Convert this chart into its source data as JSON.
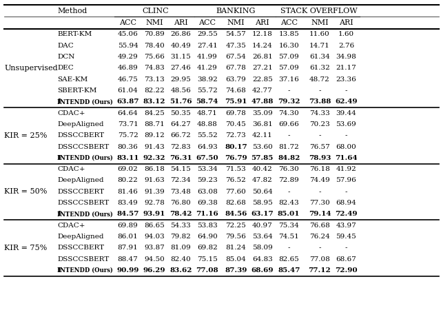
{
  "title": "",
  "header_groups": [
    {
      "label": "CLINC",
      "cols": [
        "ACC",
        "NMI",
        "ARI"
      ],
      "start": 2,
      "end": 4
    },
    {
      "label": "BANKING",
      "cols": [
        "ACC",
        "NMI",
        "ARI"
      ],
      "start": 5,
      "end": 7
    },
    {
      "label": "STACK OVERFLOW",
      "cols": [
        "ACC",
        "NMI",
        "ARI"
      ],
      "start": 8,
      "end": 10
    }
  ],
  "col_headers": [
    "",
    "Method",
    "ACC",
    "NMI",
    "ARI",
    "ACC",
    "NMI",
    "ARI",
    "ACC",
    "NMI",
    "ARI"
  ],
  "sections": [
    {
      "label": "Unsupervised",
      "rows": [
        [
          "BERT-KM",
          "45.06",
          "70.89",
          "26.86",
          "29.55",
          "54.57",
          "12.18",
          "13.85",
          "11.60",
          "1.60"
        ],
        [
          "DAC",
          "55.94",
          "78.40",
          "40.49",
          "27.41",
          "47.35",
          "14.24",
          "16.30",
          "14.71",
          "2.76"
        ],
        [
          "DCN",
          "49.29",
          "75.66",
          "31.15",
          "41.99",
          "67.54",
          "26.81",
          "57.09",
          "61.34",
          "34.98"
        ],
        [
          "DEC",
          "46.89",
          "74.83",
          "27.46",
          "41.29",
          "67.78",
          "27.21",
          "57.09",
          "61.32",
          "21.17"
        ],
        [
          "SAE-KM",
          "46.75",
          "73.13",
          "29.95",
          "38.92",
          "63.79",
          "22.85",
          "37.16",
          "48.72",
          "23.36"
        ],
        [
          "SBERT-KM",
          "61.04",
          "82.22",
          "48.56",
          "55.72",
          "74.68",
          "42.77",
          "-",
          "-",
          "-"
        ],
        [
          "INTENDD (Ours)",
          "63.87",
          "83.12",
          "51.76",
          "58.74",
          "75.91",
          "47.88",
          "79.32",
          "73.88",
          "62.49"
        ]
      ],
      "bold_row": 6
    },
    {
      "label": "KIR = 25%",
      "rows": [
        [
          "CDAC+",
          "64.64",
          "84.25",
          "50.35",
          "48.71",
          "69.78",
          "35.09",
          "74.30",
          "74.33",
          "39.44"
        ],
        [
          "DeepAligned",
          "73.71",
          "88.71",
          "64.27",
          "48.88",
          "70.45",
          "36.81",
          "69.66",
          "70.23",
          "53.69"
        ],
        [
          "DSSCCBERT",
          "75.72",
          "89.12",
          "66.72",
          "55.52",
          "72.73",
          "42.11",
          "-",
          "-",
          "-"
        ],
        [
          "DSSCCSBERT",
          "80.36",
          "91.43",
          "72.83",
          "64.93",
          "80.17",
          "53.60",
          "81.72",
          "76.57",
          "68.00"
        ],
        [
          "INTENDD (Ours)",
          "83.11",
          "92.32",
          "76.31",
          "67.50",
          "76.79",
          "57.85",
          "84.82",
          "78.93",
          "71.64"
        ]
      ],
      "bold_row": 4
    },
    {
      "label": "KIR = 50%",
      "rows": [
        [
          "CDAC+",
          "69.02",
          "86.18",
          "54.15",
          "53.34",
          "71.53",
          "40.42",
          "76.30",
          "76.18",
          "41.92"
        ],
        [
          "DeepAligned",
          "80.22",
          "91.63",
          "72.34",
          "59.23",
          "76.52",
          "47.82",
          "72.89",
          "74.49",
          "57.96"
        ],
        [
          "DSSCCBERT",
          "81.46",
          "91.39",
          "73.48",
          "63.08",
          "77.60",
          "50.64",
          "-",
          "-",
          "-"
        ],
        [
          "DSSCCSBERT",
          "83.49",
          "92.78",
          "76.80",
          "69.38",
          "82.68",
          "58.95",
          "82.43",
          "77.30",
          "68.94"
        ],
        [
          "INTENDD (Ours)",
          "84.57",
          "93.91",
          "78.42",
          "71.16",
          "84.56",
          "63.17",
          "85.01",
          "79.14",
          "72.49"
        ]
      ],
      "bold_row": 4
    },
    {
      "label": "KIR = 75%",
      "rows": [
        [
          "CDAC+",
          "69.89",
          "86.65",
          "54.33",
          "53.83",
          "72.25",
          "40.97",
          "75.34",
          "76.68",
          "43.97"
        ],
        [
          "DeepAligned",
          "86.01",
          "94.03",
          "79.82",
          "64.90",
          "79.56",
          "53.64",
          "74.51",
          "76.24",
          "59.45"
        ],
        [
          "DSSCCBERT",
          "87.91",
          "93.87",
          "81.09",
          "69.82",
          "81.24",
          "58.09",
          "-",
          "-",
          "-"
        ],
        [
          "DSSCCSBERT",
          "88.47",
          "94.50",
          "82.40",
          "75.15",
          "85.04",
          "64.83",
          "82.65",
          "77.08",
          "68.67"
        ],
        [
          "INTENDD (Ours)",
          "90.99",
          "96.29",
          "83.62",
          "77.08",
          "87.39",
          "68.69",
          "85.47",
          "77.12",
          "72.90"
        ]
      ],
      "bold_row": 4
    }
  ],
  "bold_values": {
    "BANKING_NMI_KIR25": "80.17"
  },
  "fig_width": 6.4,
  "fig_height": 4.79,
  "dpi": 100,
  "bg_color": "#ffffff",
  "text_color": "#000000",
  "font_size": 7.5,
  "header_font_size": 8.0,
  "section_label_font_size": 8.0
}
